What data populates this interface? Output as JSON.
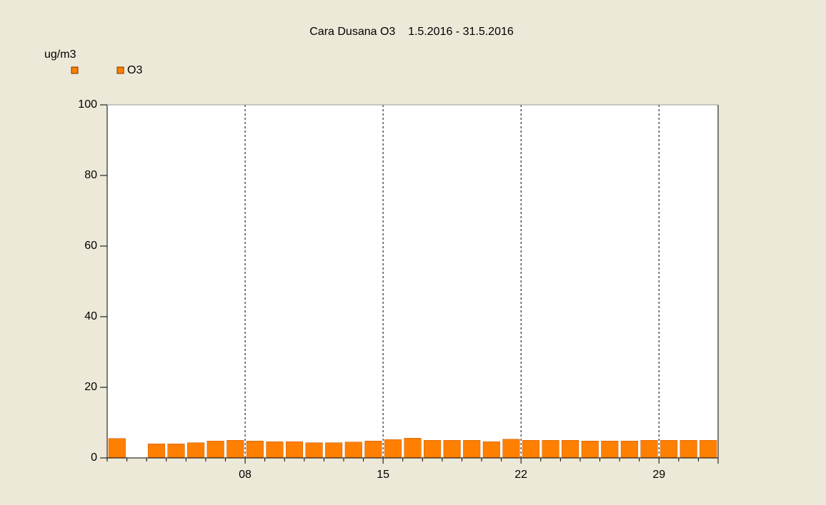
{
  "chart_data": {
    "type": "bar",
    "title": "Cara Dusana O3    1.5.2016 - 31.5.2016",
    "y_label": "ug/m3",
    "categories": [
      null,
      null,
      null,
      null,
      null,
      null,
      null,
      "08",
      null,
      null,
      null,
      null,
      null,
      null,
      "15",
      null,
      null,
      null,
      null,
      null,
      null,
      "22",
      null,
      null,
      null,
      null,
      null,
      null,
      "29",
      null,
      null
    ],
    "series": [
      {
        "name": "O3",
        "color": "#ff7f00",
        "values": [
          5.5,
          null,
          4,
          4,
          4.3,
          4.8,
          5,
          4.8,
          4.6,
          4.6,
          4.3,
          4.3,
          4.5,
          4.8,
          5.2,
          5.6,
          5,
          5,
          5,
          4.6,
          5.3,
          5,
          5,
          5,
          4.8,
          4.8,
          4.8,
          5,
          5,
          5,
          5
        ]
      }
    ],
    "ylim": [
      0,
      100
    ],
    "yticks": [
      0,
      20,
      40,
      60,
      80,
      100
    ],
    "grid": true
  }
}
